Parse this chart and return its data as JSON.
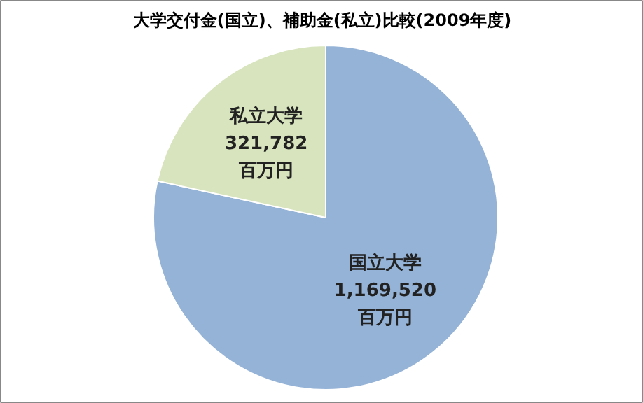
{
  "chart_data": {
    "type": "pie",
    "title": "大学交付金(国立)、補助金(私立)比較(2009年度)",
    "categories": [
      "国立大学",
      "私立大学"
    ],
    "values": [
      1169520,
      321782
    ],
    "value_labels": [
      "1,169,520百万円",
      "321,782百万円"
    ],
    "colors": [
      "#95b3d7",
      "#d7e4bd"
    ],
    "legend": false
  }
}
